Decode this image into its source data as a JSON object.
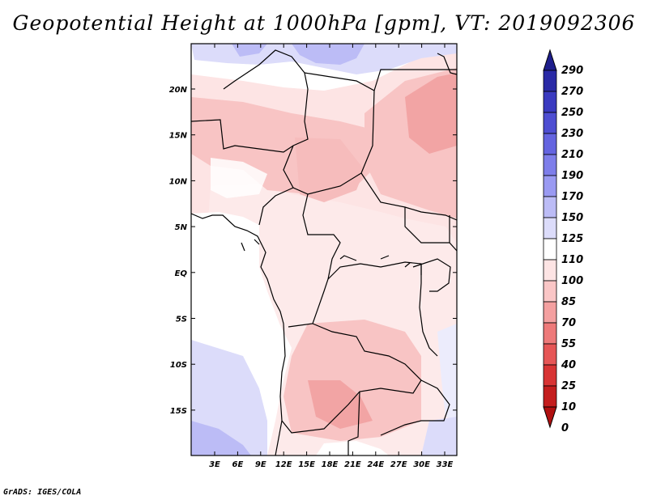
{
  "title": "Geopotential Height at 1000hPa [gpm], VT: 2019092306",
  "footer": "GrADS: IGES/COLA",
  "map": {
    "lat_ticks": [
      "20N",
      "15N",
      "10N",
      "5N",
      "EQ",
      "5S",
      "10S",
      "15S"
    ],
    "lon_ticks": [
      "3E",
      "6E",
      "9E",
      "12E",
      "15E",
      "18E",
      "21E",
      "24E",
      "27E",
      "30E",
      "33E"
    ]
  },
  "colorbar": {
    "levels": [
      "290",
      "270",
      "250",
      "230",
      "210",
      "190",
      "170",
      "150",
      "125",
      "110",
      "100",
      "85",
      "70",
      "55",
      "40",
      "25",
      "10",
      "0"
    ],
    "colors": [
      "#1e1e8c",
      "#2a2aa6",
      "#3a3ac0",
      "#4e4ed2",
      "#6464e0",
      "#7e7eea",
      "#9a9af2",
      "#bcbcf6",
      "#dcdcfa",
      "#ffffff",
      "#fde4e4",
      "#fac6c6",
      "#f4a0a0",
      "#ee7a7a",
      "#e65656",
      "#d83434",
      "#c41e1e",
      "#b01010"
    ]
  }
}
